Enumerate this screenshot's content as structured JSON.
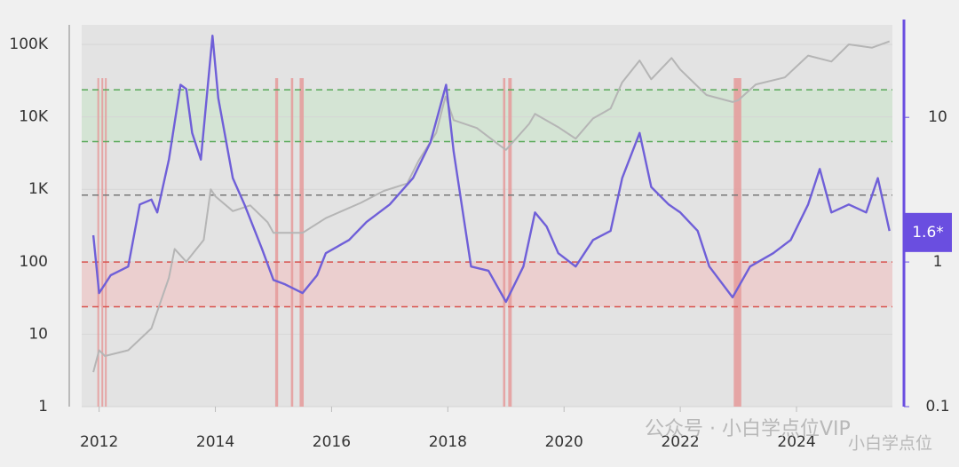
{
  "chart_data": {
    "type": "line",
    "log_scale": true,
    "xlim": [
      2011.7,
      2025.65
    ],
    "ylim": [
      1,
      186000
    ],
    "y2lim": [
      0.1,
      43.6
    ],
    "xticks": [
      2012,
      2014,
      2016,
      2018,
      2020,
      2022,
      2024
    ],
    "yticks": [
      1,
      10,
      100,
      {
        "value": 1000,
        "label": "1K"
      },
      {
        "value": 10000,
        "label": "10K"
      },
      {
        "value": 100000,
        "label": "100K"
      }
    ],
    "y2ticks": [
      0.1,
      1,
      10
    ],
    "bands": [
      {
        "range": [
          6.8,
          15.5
        ],
        "color": "#cfe3cf"
      },
      {
        "range": [
          0.49,
          1.0
        ],
        "color": "#ecc9c9"
      }
    ],
    "levels": [
      {
        "value": 15.5,
        "color": "#5aa85a"
      },
      {
        "value": 6.8,
        "color": "#5aa85a"
      },
      {
        "value": 2.9,
        "color": "#777777"
      },
      {
        "value": 1.0,
        "color": "#d9534f"
      },
      {
        "value": 0.49,
        "color": "#d9534f"
      }
    ],
    "highlights": [
      [
        2011.97,
        2011.99
      ],
      [
        2012.04,
        2012.06
      ],
      [
        2012.1,
        2012.12
      ],
      [
        2015.03,
        2015.08
      ],
      [
        2015.3,
        2015.34
      ],
      [
        2015.45,
        2015.52
      ],
      [
        2018.95,
        2018.99
      ],
      [
        2019.04,
        2019.1
      ],
      [
        2022.92,
        2023.05
      ]
    ],
    "highlight_color": "#e59a9a",
    "series": [
      {
        "color": "#b5b5b5",
        "axis": "y",
        "x": [
          2011.9,
          2012.0,
          2012.1,
          2012.5,
          2012.9,
          2013.2,
          2013.3,
          2013.5,
          2013.8,
          2013.92,
          2014.0,
          2014.3,
          2014.6,
          2014.9,
          2015.0,
          2015.5,
          2015.9,
          2016.5,
          2016.9,
          2017.3,
          2017.5,
          2017.8,
          2017.96,
          2018.1,
          2018.5,
          2018.9,
          2019.0,
          2019.4,
          2019.5,
          2019.9,
          2020.2,
          2020.5,
          2020.8,
          2021.0,
          2021.3,
          2021.5,
          2021.85,
          2022.0,
          2022.45,
          2022.9,
          2023.0,
          2023.3,
          2023.8,
          2024.2,
          2024.6,
          2024.9,
          2025.3,
          2025.6
        ],
        "values": [
          3,
          6,
          5,
          6,
          12,
          60,
          150,
          100,
          200,
          1000,
          800,
          500,
          600,
          350,
          250,
          250,
          400,
          650,
          950,
          1200,
          2500,
          6000,
          19000,
          9000,
          7000,
          4000,
          3500,
          8000,
          11000,
          7200,
          5000,
          9500,
          13000,
          30000,
          60000,
          33000,
          65000,
          45000,
          20000,
          16000,
          17000,
          28000,
          35000,
          70000,
          58000,
          100000,
          90000,
          110000
        ]
      },
      {
        "color": "#6f5fd8",
        "axis": "y2",
        "x": [
          2011.9,
          2012.0,
          2012.2,
          2012.5,
          2012.7,
          2012.9,
          2013.0,
          2013.2,
          2013.4,
          2013.5,
          2013.6,
          2013.75,
          2013.95,
          2014.05,
          2014.3,
          2014.5,
          2014.8,
          2015.0,
          2015.2,
          2015.5,
          2015.75,
          2015.9,
          2016.3,
          2016.6,
          2017.0,
          2017.4,
          2017.7,
          2017.97,
          2018.1,
          2018.4,
          2018.7,
          2019.0,
          2019.3,
          2019.5,
          2019.7,
          2019.9,
          2020.2,
          2020.5,
          2020.8,
          2021.0,
          2021.3,
          2021.5,
          2021.8,
          2022.0,
          2022.3,
          2022.5,
          2022.9,
          2023.2,
          2023.6,
          2023.9,
          2024.2,
          2024.4,
          2024.6,
          2024.9,
          2025.2,
          2025.4,
          2025.6
        ],
        "values": [
          1.53,
          0.61,
          0.81,
          0.93,
          2.5,
          2.7,
          2.2,
          5.1,
          16.8,
          15.7,
          7.8,
          5.1,
          36.7,
          13.6,
          3.8,
          2.5,
          1.24,
          0.75,
          0.7,
          0.61,
          0.81,
          1.15,
          1.42,
          1.89,
          2.5,
          3.8,
          6.7,
          16.8,
          5.8,
          0.93,
          0.87,
          0.53,
          0.93,
          2.2,
          1.76,
          1.15,
          0.93,
          1.42,
          1.64,
          3.8,
          7.8,
          3.3,
          2.5,
          2.2,
          1.64,
          0.93,
          0.57,
          0.93,
          1.15,
          1.42,
          2.5,
          4.4,
          2.2,
          2.5,
          2.2,
          3.8,
          1.64
        ]
      }
    ],
    "badge": {
      "value": 1.6,
      "label": "1.6*",
      "color": "#6a4ee0"
    },
    "watermarks": [
      "公众号 · 小白学点位VIP",
      "小白学点位"
    ]
  }
}
